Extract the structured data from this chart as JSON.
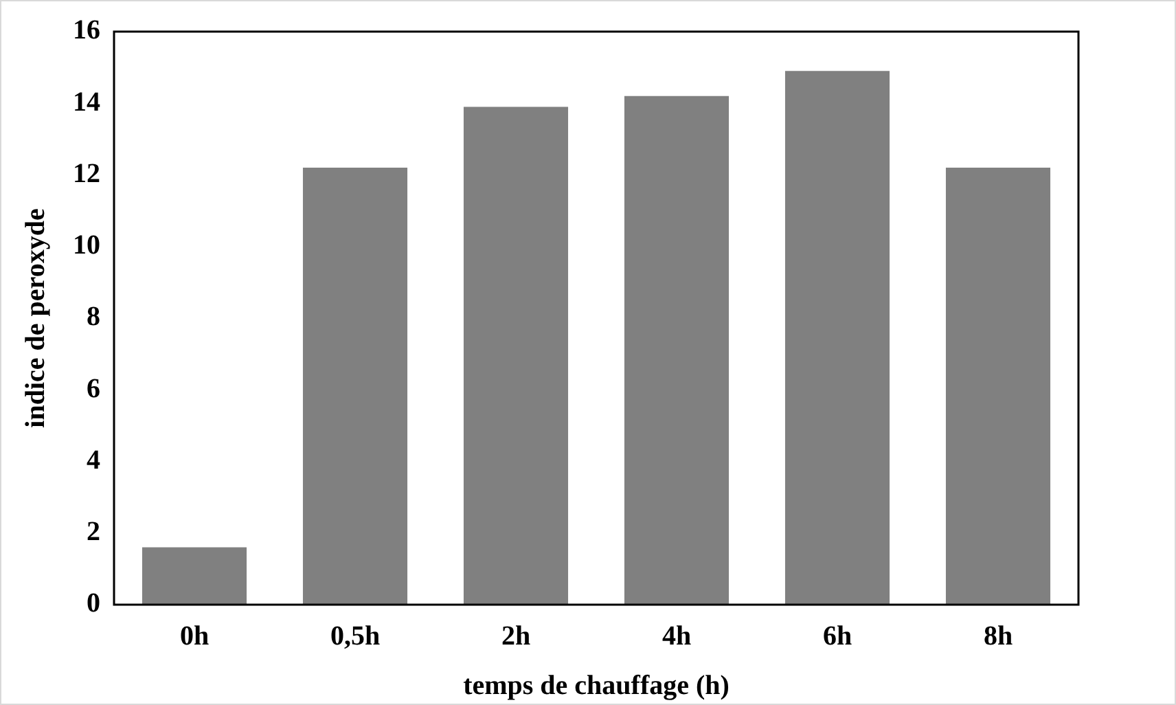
{
  "chart_data": {
    "type": "bar",
    "xlabel": "temps de chauffage (h)",
    "ylabel": "indice de peroxyde",
    "categories": [
      "0h",
      "0,5h",
      "2h",
      "4h",
      "6h",
      "8h"
    ],
    "values": [
      1.6,
      12.2,
      13.9,
      14.2,
      14.9,
      12.2
    ],
    "color": "#808080",
    "ylim": [
      0,
      16
    ],
    "yticks": [
      0,
      2,
      4,
      6,
      8,
      10,
      12,
      14,
      16
    ],
    "grid": false,
    "legend": false
  }
}
